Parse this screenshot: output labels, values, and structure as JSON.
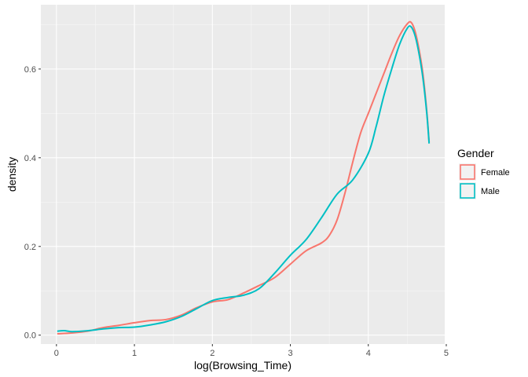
{
  "chart_data": {
    "type": "line",
    "title": "",
    "xlabel": "log(Browsing_Time)",
    "ylabel": "density",
    "xlim": [
      -0.2,
      4.98
    ],
    "ylim": [
      -0.02,
      0.745
    ],
    "x_ticks": [
      0,
      1,
      2,
      3,
      4,
      5
    ],
    "x_tick_labels": [
      "0",
      "1",
      "2",
      "3",
      "4",
      "5"
    ],
    "y_ticks": [
      0.0,
      0.2,
      0.4,
      0.6
    ],
    "y_tick_labels": [
      "0.0",
      "0.2",
      "0.4",
      "0.6"
    ],
    "grid": true,
    "legend_position": "right",
    "legend_title": "Gender",
    "series": [
      {
        "name": "Female",
        "color": "#F8766D",
        "x": [
          0.01,
          0.2,
          0.4,
          0.6,
          0.8,
          1.0,
          1.2,
          1.4,
          1.6,
          1.8,
          2.0,
          2.2,
          2.4,
          2.6,
          2.8,
          3.0,
          3.2,
          3.4,
          3.5,
          3.6,
          3.7,
          3.8,
          3.9,
          4.0,
          4.1,
          4.2,
          4.3,
          4.4,
          4.5,
          4.55,
          4.6,
          4.65,
          4.7,
          4.75,
          4.78
        ],
        "y": [
          0.003,
          0.005,
          0.009,
          0.017,
          0.022,
          0.028,
          0.033,
          0.035,
          0.045,
          0.062,
          0.075,
          0.08,
          0.095,
          0.112,
          0.13,
          0.16,
          0.19,
          0.208,
          0.225,
          0.26,
          0.32,
          0.39,
          0.455,
          0.5,
          0.545,
          0.59,
          0.635,
          0.675,
          0.702,
          0.705,
          0.685,
          0.645,
          0.59,
          0.505,
          0.435
        ]
      },
      {
        "name": "Male",
        "color": "#00BFC4",
        "x": [
          0.01,
          0.1,
          0.2,
          0.4,
          0.6,
          0.8,
          1.0,
          1.2,
          1.4,
          1.6,
          1.8,
          2.0,
          2.2,
          2.4,
          2.6,
          2.8,
          3.0,
          3.2,
          3.4,
          3.6,
          3.8,
          4.0,
          4.1,
          4.2,
          4.3,
          4.4,
          4.5,
          4.55,
          4.6,
          4.65,
          4.7,
          4.75,
          4.78
        ],
        "y": [
          0.009,
          0.01,
          0.008,
          0.01,
          0.014,
          0.017,
          0.018,
          0.023,
          0.03,
          0.042,
          0.06,
          0.078,
          0.085,
          0.09,
          0.105,
          0.14,
          0.18,
          0.215,
          0.265,
          0.318,
          0.35,
          0.41,
          0.47,
          0.54,
          0.6,
          0.655,
          0.692,
          0.695,
          0.675,
          0.635,
          0.58,
          0.5,
          0.432
        ]
      }
    ]
  }
}
